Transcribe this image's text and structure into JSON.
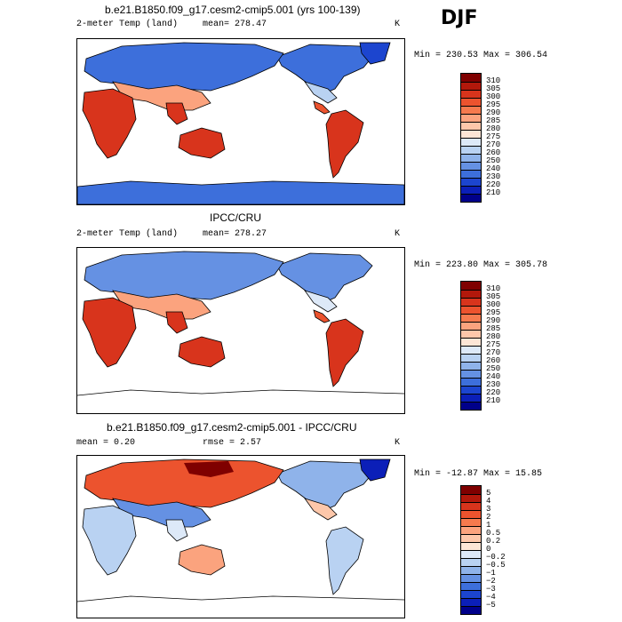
{
  "season": "DJF",
  "panels": [
    {
      "id": "model",
      "title": "b.e21.B1850.f09_g17.cesm2-cmip5.001 (yrs 100-139)",
      "left_label": "2-meter Temp (land)",
      "mean_label": "mean= 278.47",
      "units": "K",
      "minmax": "Min = 230.53 Max = 306.54",
      "colorbar": {
        "labels": [
          "310",
          "305",
          "300",
          "295",
          "290",
          "285",
          "280",
          "275",
          "270",
          "260",
          "250",
          "240",
          "230",
          "220",
          "210"
        ],
        "colors": [
          "#7f0000",
          "#b2180b",
          "#d8341c",
          "#ec532e",
          "#f57a4e",
          "#fba37e",
          "#fdc7aa",
          "#fde6d6",
          "#dde9f8",
          "#b9d2f2",
          "#8fb3ea",
          "#6591e3",
          "#3d6fdb",
          "#1c45cf",
          "#0b1fb8",
          "#00008a"
        ]
      }
    },
    {
      "id": "obs",
      "title": "IPCC/CRU",
      "left_label": "2-meter Temp (land)",
      "mean_label": "mean= 278.27",
      "units": "K",
      "minmax": "Min = 223.80 Max = 305.78",
      "colorbar": {
        "labels": [
          "310",
          "305",
          "300",
          "295",
          "290",
          "285",
          "280",
          "275",
          "270",
          "260",
          "250",
          "240",
          "230",
          "220",
          "210"
        ],
        "colors": [
          "#7f0000",
          "#b2180b",
          "#d8341c",
          "#ec532e",
          "#f57a4e",
          "#fba37e",
          "#fdc7aa",
          "#fde6d6",
          "#dde9f8",
          "#b9d2f2",
          "#8fb3ea",
          "#6591e3",
          "#3d6fdb",
          "#1c45cf",
          "#0b1fb8",
          "#00008a"
        ]
      }
    },
    {
      "id": "diff",
      "title": "b.e21.B1850.f09_g17.cesm2-cmip5.001 - IPCC/CRU",
      "left_label": "mean =    0.20",
      "mean_label": "rmse =    2.57",
      "units": "K",
      "minmax": "Min = -12.87 Max =  15.85",
      "colorbar": {
        "labels": [
          "5",
          "4",
          "3",
          "2",
          "1",
          "0.5",
          "0.2",
          "0",
          "−0.2",
          "−0.5",
          "−1",
          "−2",
          "−3",
          "−4",
          "−5"
        ],
        "colors": [
          "#7f0000",
          "#b2180b",
          "#d8341c",
          "#ec532e",
          "#f57a4e",
          "#fba37e",
          "#fdc7aa",
          "#fde6d6",
          "#dde9f8",
          "#b9d2f2",
          "#8fb3ea",
          "#6591e3",
          "#3d6fdb",
          "#1c45cf",
          "#0b1fb8",
          "#00008a"
        ]
      }
    }
  ]
}
